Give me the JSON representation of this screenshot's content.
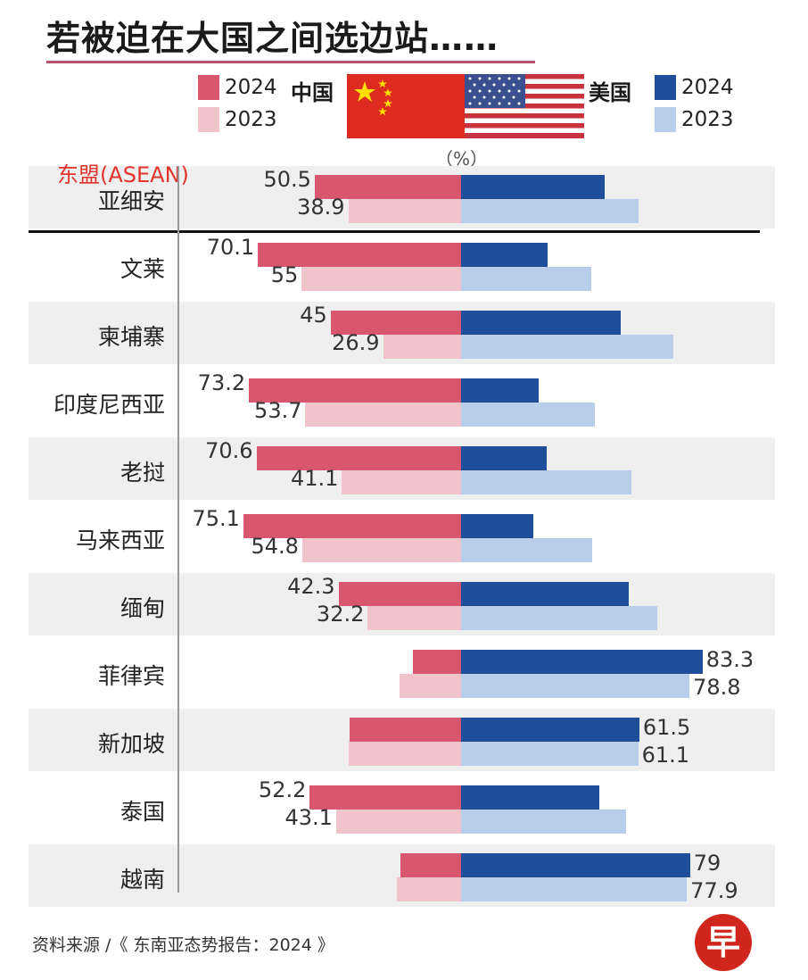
{
  "title": "若被迫在大国之间选边站……",
  "legend": {
    "china_label": "中国",
    "us_label": "美国",
    "year_2024": "2024",
    "year_2023": "2023"
  },
  "unit_label": "（%）",
  "asean_tag": "东盟(ASEAN)",
  "colors": {
    "china_2024": "#d9576e",
    "china_2023": "#f1c4cc",
    "us_2024": "#1f4e9b",
    "us_2023": "#b8cdea",
    "flag_cn": "#de2b20",
    "flag_us_red": "#c8323d",
    "flag_us_blue": "#3c4f90"
  },
  "chart_data": {
    "type": "bar",
    "orientation": "diverging-horizontal",
    "title": "若被迫在大国之间选边站……",
    "unit": "%",
    "xlim": [
      -100,
      100
    ],
    "categories": [
      "亚细安",
      "文莱",
      "柬埔寨",
      "印度尼西亚",
      "老挝",
      "马来西亚",
      "缅甸",
      "菲律宾",
      "新加坡",
      "泰国",
      "越南"
    ],
    "series": [
      {
        "name": "中国 2024",
        "side": "left",
        "values": [
          50.5,
          70.1,
          45,
          73.2,
          70.6,
          75.1,
          42.3,
          16.7,
          38.5,
          52.2,
          21
        ]
      },
      {
        "name": "中国 2023",
        "side": "left",
        "values": [
          38.9,
          55,
          26.9,
          53.7,
          41.1,
          54.8,
          32.2,
          21.2,
          38.9,
          43.1,
          22.1
        ]
      },
      {
        "name": "美国 2024",
        "side": "right",
        "values": [
          49.5,
          29.9,
          55,
          26.8,
          29.4,
          24.9,
          57.7,
          83.3,
          61.5,
          47.8,
          79
        ]
      },
      {
        "name": "美国 2023",
        "side": "right",
        "values": [
          61.1,
          45,
          73.1,
          46.3,
          58.9,
          45.2,
          67.8,
          78.8,
          61.1,
          56.9,
          77.9
        ]
      }
    ],
    "data_labels": {
      "亚细安": {
        "cn2024": "50.5",
        "cn2023": "38.9"
      },
      "文莱": {
        "cn2024": "70.1",
        "cn2023": "55"
      },
      "柬埔寨": {
        "cn2024": "45",
        "cn2023": "26.9"
      },
      "印度尼西亚": {
        "cn2024": "73.2",
        "cn2023": "53.7"
      },
      "老挝": {
        "cn2024": "70.6",
        "cn2023": "41.1"
      },
      "马来西亚": {
        "cn2024": "75.1",
        "cn2023": "54.8"
      },
      "缅甸": {
        "cn2024": "42.3",
        "cn2023": "32.2"
      },
      "菲律宾": {
        "us2024": "83.3",
        "us2023": "78.8"
      },
      "新加坡": {
        "us2024": "61.5",
        "us2023": "61.1"
      },
      "泰国": {
        "cn2024": "52.2",
        "cn2023": "43.1"
      },
      "越南": {
        "us2024": "79",
        "us2023": "77.9"
      }
    }
  },
  "footer": "资料来源 /《 东南亚态势报告：2024 》",
  "logo_text": "早"
}
